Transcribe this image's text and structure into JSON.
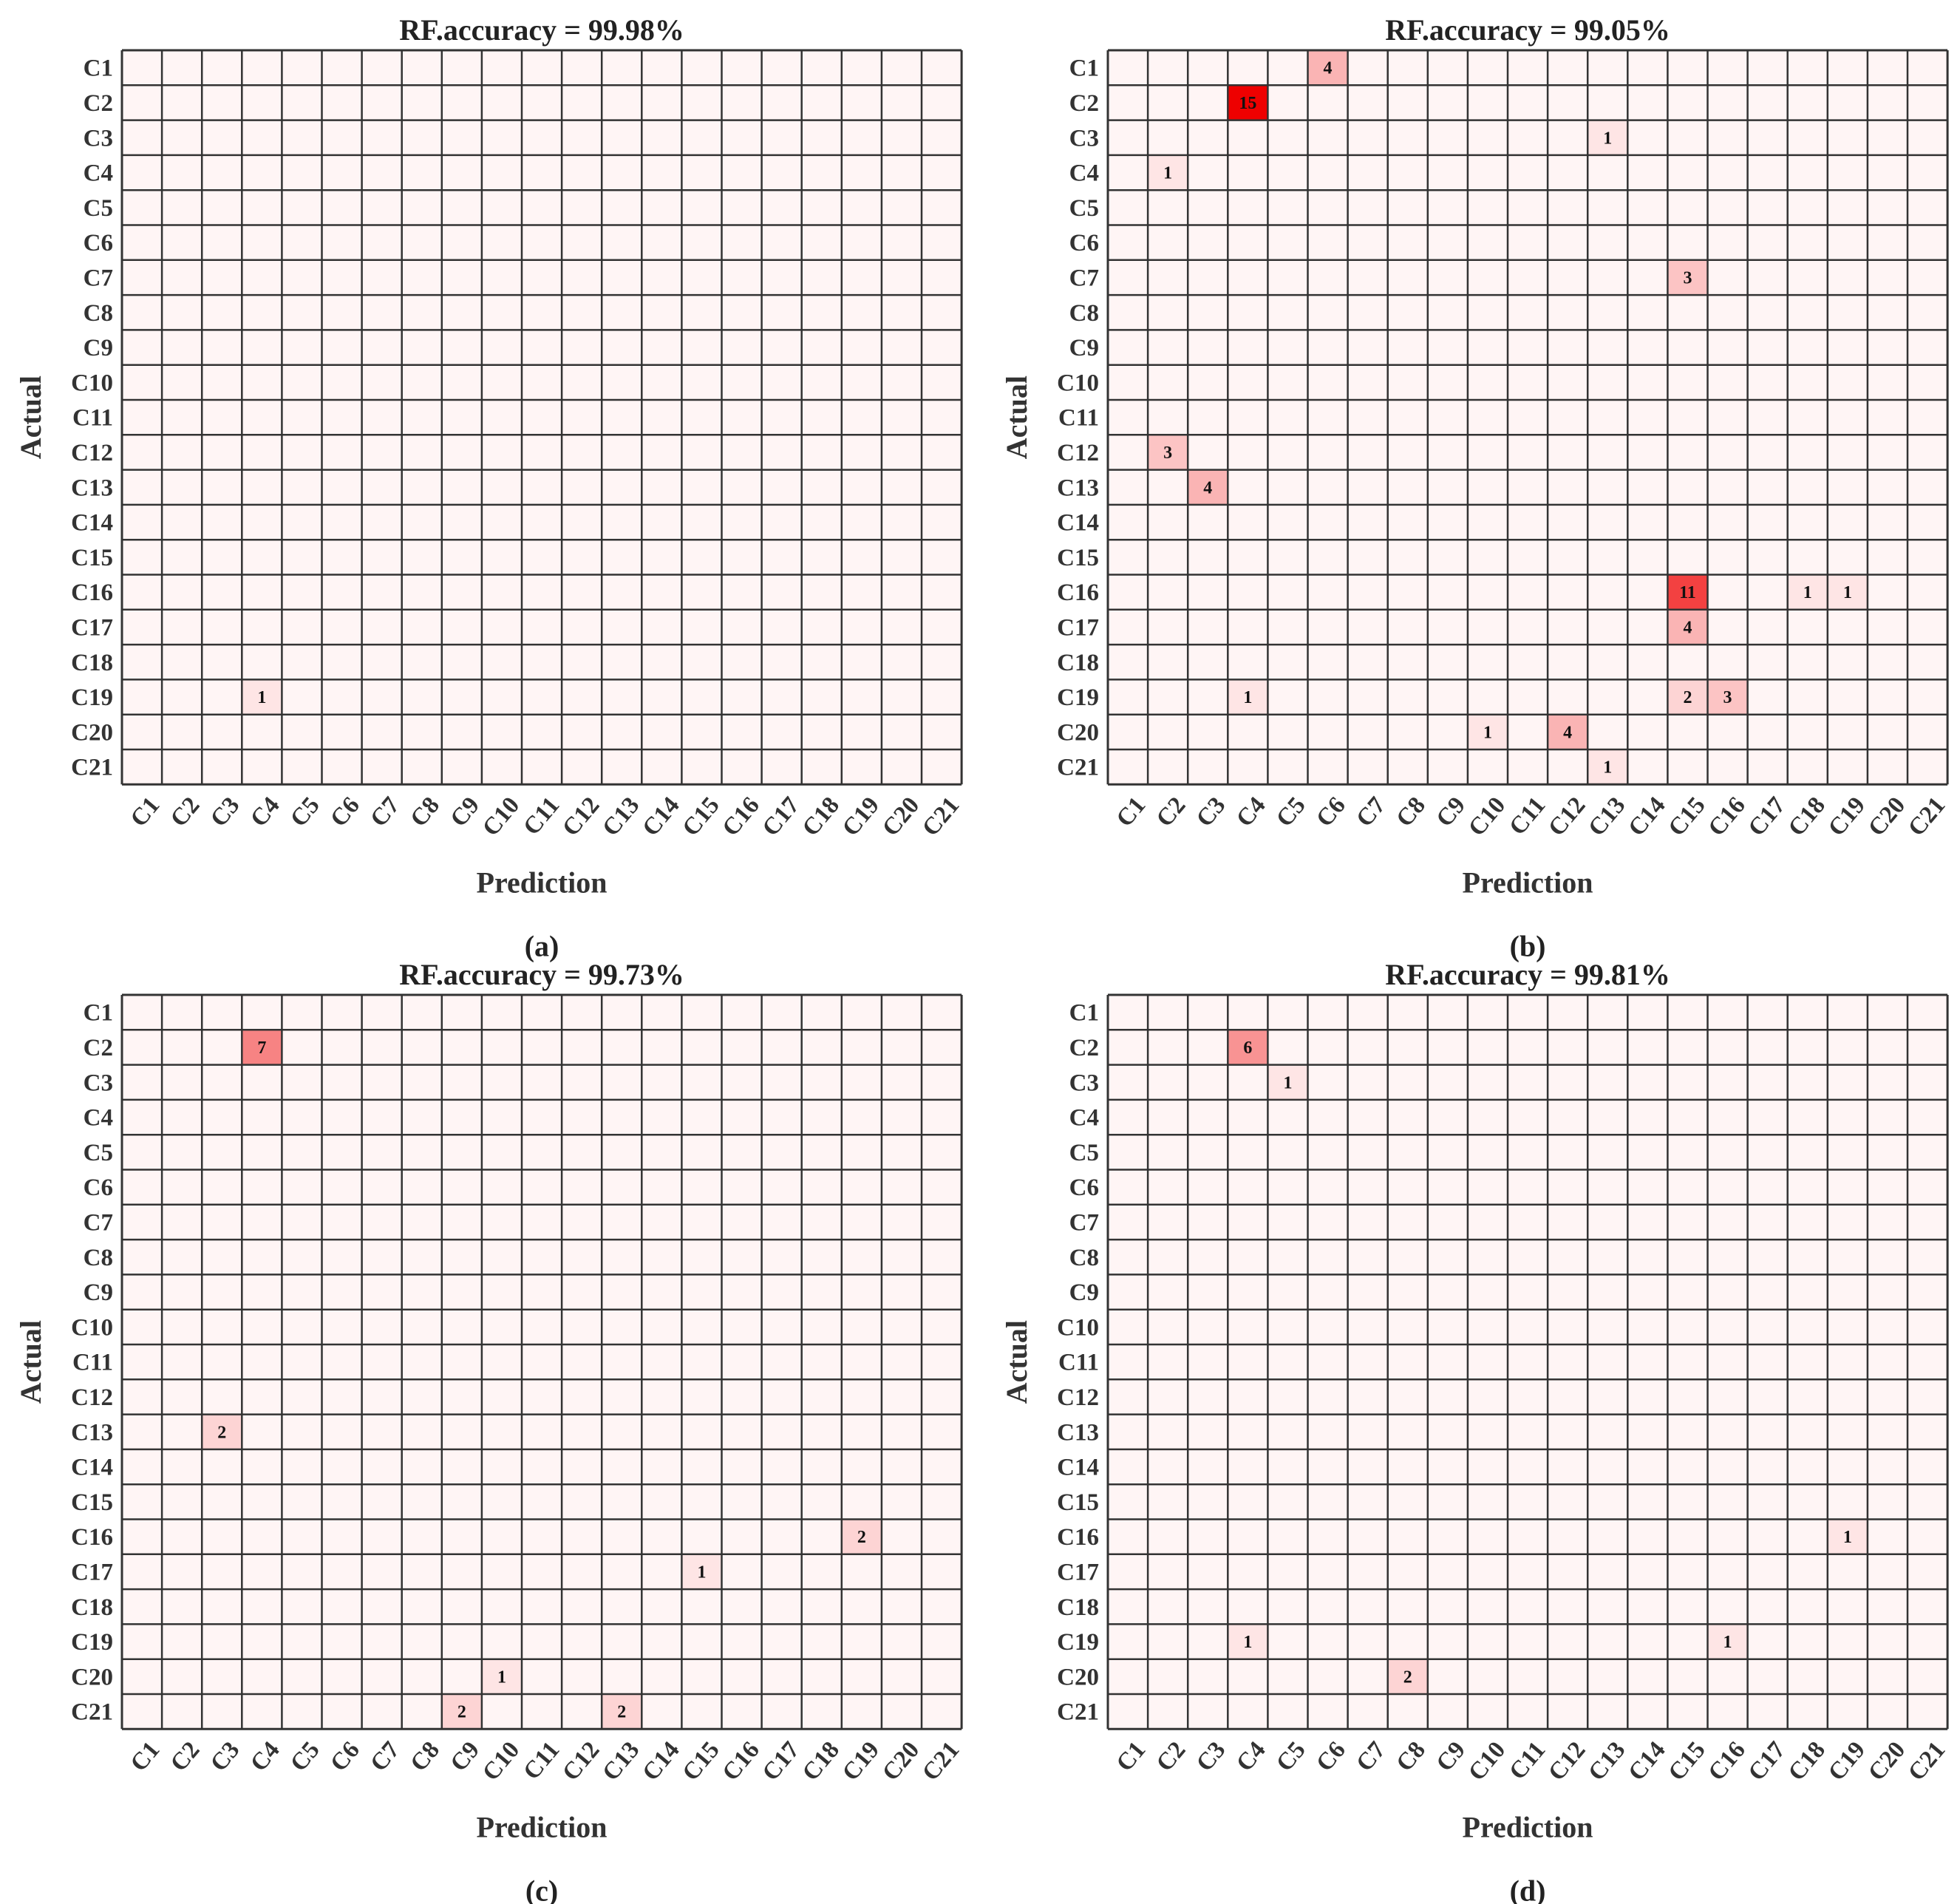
{
  "chart_data": [
    {
      "type": "heatmap",
      "panel_label": "(a)",
      "title": "RF.accuracy = 99.98%",
      "xlabel": "Prediction",
      "ylabel": "Actual",
      "categories": [
        "C1",
        "C2",
        "C3",
        "C4",
        "C5",
        "C6",
        "C7",
        "C8",
        "C9",
        "C10",
        "C11",
        "C12",
        "C13",
        "C14",
        "C15",
        "C16",
        "C17",
        "C18",
        "C19",
        "C20",
        "C21"
      ],
      "cells": [
        {
          "actual": "C19",
          "predicted": "C4",
          "value": 1
        }
      ]
    },
    {
      "type": "heatmap",
      "panel_label": "(b)",
      "title": "RF.accuracy = 99.05%",
      "xlabel": "Prediction",
      "ylabel": "Actual",
      "categories": [
        "C1",
        "C2",
        "C3",
        "C4",
        "C5",
        "C6",
        "C7",
        "C8",
        "C9",
        "C10",
        "C11",
        "C12",
        "C13",
        "C14",
        "C15",
        "C16",
        "C17",
        "C18",
        "C19",
        "C20",
        "C21"
      ],
      "cells": [
        {
          "actual": "C1",
          "predicted": "C6",
          "value": 4
        },
        {
          "actual": "C2",
          "predicted": "C4",
          "value": 15
        },
        {
          "actual": "C3",
          "predicted": "C13",
          "value": 1
        },
        {
          "actual": "C4",
          "predicted": "C2",
          "value": 1
        },
        {
          "actual": "C7",
          "predicted": "C15",
          "value": 3
        },
        {
          "actual": "C12",
          "predicted": "C2",
          "value": 3
        },
        {
          "actual": "C13",
          "predicted": "C3",
          "value": 4
        },
        {
          "actual": "C16",
          "predicted": "C15",
          "value": 11
        },
        {
          "actual": "C16",
          "predicted": "C18",
          "value": 1
        },
        {
          "actual": "C16",
          "predicted": "C19",
          "value": 1
        },
        {
          "actual": "C17",
          "predicted": "C15",
          "value": 4
        },
        {
          "actual": "C19",
          "predicted": "C4",
          "value": 1
        },
        {
          "actual": "C19",
          "predicted": "C15",
          "value": 2
        },
        {
          "actual": "C19",
          "predicted": "C16",
          "value": 3
        },
        {
          "actual": "C20",
          "predicted": "C10",
          "value": 1
        },
        {
          "actual": "C20",
          "predicted": "C12",
          "value": 4
        },
        {
          "actual": "C21",
          "predicted": "C13",
          "value": 1
        }
      ]
    },
    {
      "type": "heatmap",
      "panel_label": "(c)",
      "title": "RF.accuracy = 99.73%",
      "xlabel": "Prediction",
      "ylabel": "Actual",
      "categories": [
        "C1",
        "C2",
        "C3",
        "C4",
        "C5",
        "C6",
        "C7",
        "C8",
        "C9",
        "C10",
        "C11",
        "C12",
        "C13",
        "C14",
        "C15",
        "C16",
        "C17",
        "C18",
        "C19",
        "C20",
        "C21"
      ],
      "cells": [
        {
          "actual": "C2",
          "predicted": "C4",
          "value": 7
        },
        {
          "actual": "C13",
          "predicted": "C3",
          "value": 2
        },
        {
          "actual": "C16",
          "predicted": "C19",
          "value": 2
        },
        {
          "actual": "C17",
          "predicted": "C15",
          "value": 1
        },
        {
          "actual": "C20",
          "predicted": "C10",
          "value": 1
        },
        {
          "actual": "C21",
          "predicted": "C9",
          "value": 2
        },
        {
          "actual": "C21",
          "predicted": "C13",
          "value": 2
        }
      ]
    },
    {
      "type": "heatmap",
      "panel_label": "(d)",
      "title": "RF.accuracy = 99.81%",
      "xlabel": "Prediction",
      "ylabel": "Actual",
      "categories": [
        "C1",
        "C2",
        "C3",
        "C4",
        "C5",
        "C6",
        "C7",
        "C8",
        "C9",
        "C10",
        "C11",
        "C12",
        "C13",
        "C14",
        "C15",
        "C16",
        "C17",
        "C18",
        "C19",
        "C20",
        "C21"
      ],
      "cells": [
        {
          "actual": "C2",
          "predicted": "C4",
          "value": 6
        },
        {
          "actual": "C3",
          "predicted": "C5",
          "value": 1
        },
        {
          "actual": "C16",
          "predicted": "C19",
          "value": 1
        },
        {
          "actual": "C19",
          "predicted": "C4",
          "value": 1
        },
        {
          "actual": "C19",
          "predicted": "C16",
          "value": 1
        },
        {
          "actual": "C20",
          "predicted": "C8",
          "value": 2
        }
      ]
    }
  ],
  "colors": {
    "empty_cell": "#fff5f5",
    "max_cell": "#ee0000",
    "grid": "#333333"
  }
}
